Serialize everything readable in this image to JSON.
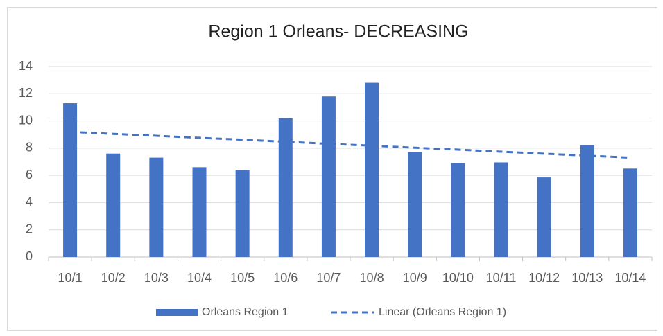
{
  "chart_data": {
    "type": "bar",
    "title": "Region 1 Orleans- DECREASING",
    "categories": [
      "10/1",
      "10/2",
      "10/3",
      "10/4",
      "10/5",
      "10/6",
      "10/7",
      "10/8",
      "10/9",
      "10/10",
      "10/11",
      "10/12",
      "10/13",
      "10/14"
    ],
    "series": [
      {
        "name": "Orleans Region 1",
        "type": "bar",
        "color": "#4472c4",
        "values": [
          11.3,
          7.6,
          7.3,
          6.6,
          6.4,
          10.2,
          11.8,
          12.8,
          7.7,
          6.9,
          6.95,
          5.85,
          8.2,
          6.5
        ]
      },
      {
        "name": "Linear (Orleans Region 1)",
        "type": "trendline",
        "color": "#4472c4",
        "values": [
          9.2,
          9.05,
          8.91,
          8.76,
          8.62,
          8.47,
          8.32,
          8.18,
          8.03,
          7.89,
          7.74,
          7.59,
          7.45,
          7.3
        ]
      }
    ],
    "ylim": [
      0,
      14
    ],
    "yticks": [
      0,
      2,
      4,
      6,
      8,
      10,
      12,
      14
    ],
    "grid": true,
    "legend": "bottom"
  }
}
